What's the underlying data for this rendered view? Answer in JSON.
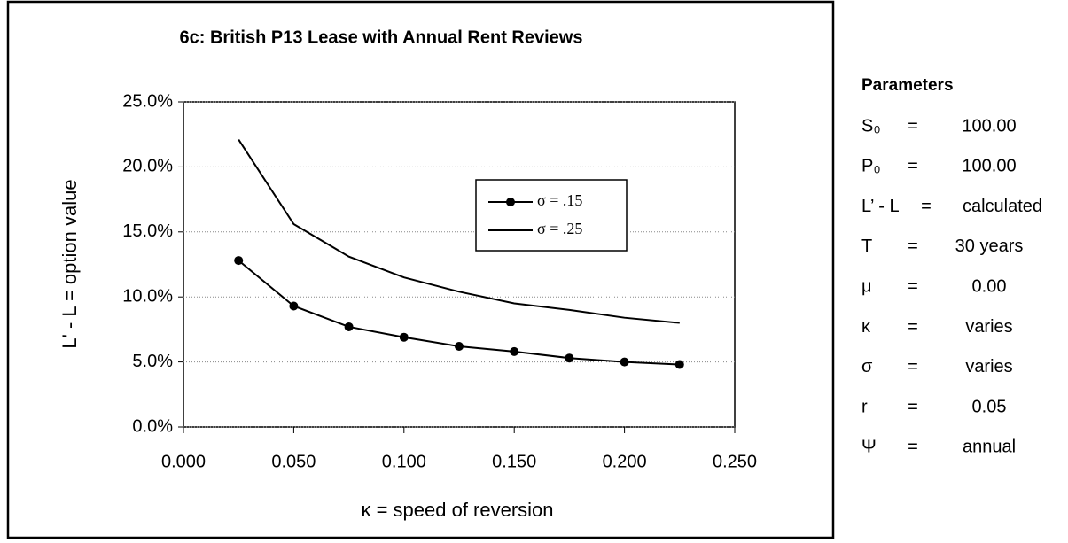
{
  "chart_data": {
    "type": "line",
    "title": "6c: British P13 Lease with Annual Rent Reviews",
    "x_label": "κ = speed of reversion",
    "y_label": "L' - L  =  option value",
    "x": [
      0.025,
      0.05,
      0.075,
      0.1,
      0.125,
      0.15,
      0.175,
      0.2,
      0.225
    ],
    "series": [
      {
        "name": "σ = .15",
        "color": "#000000",
        "markers": true,
        "values": [
          12.8,
          9.3,
          7.7,
          6.9,
          6.2,
          5.8,
          5.3,
          5.0,
          4.8
        ]
      },
      {
        "name": "σ = .25",
        "color": "#000000",
        "markers": false,
        "values": [
          22.1,
          15.6,
          13.1,
          11.5,
          10.4,
          9.5,
          9.0,
          8.4,
          8.0
        ]
      }
    ],
    "xlim": [
      0,
      0.25
    ],
    "xticks": [
      {
        "value": 0,
        "label": "0.000"
      },
      {
        "value": 0.05,
        "label": "0.050"
      },
      {
        "value": 0.1,
        "label": "0.100"
      },
      {
        "value": 0.15,
        "label": "0.150"
      },
      {
        "value": 0.2,
        "label": "0.200"
      },
      {
        "value": 0.25,
        "label": "0.250"
      }
    ],
    "ylim": [
      0,
      25
    ],
    "yticks": [
      {
        "value": 0,
        "label": "0.0%"
      },
      {
        "value": 5,
        "label": "5.0%"
      },
      {
        "value": 10,
        "label": "10.0%"
      },
      {
        "value": 15,
        "label": "15.0%"
      },
      {
        "value": 20,
        "label": "20.0%"
      },
      {
        "value": 25,
        "label": "25.0%"
      }
    ],
    "grid": true
  },
  "parameters": {
    "title": "Parameters",
    "rows": [
      [
        "S₀",
        "=",
        "100.00"
      ],
      [
        "P₀",
        "=",
        "100.00"
      ],
      [
        "L’ - L",
        "=",
        "calculated"
      ],
      [
        "T",
        "=",
        "30 years"
      ],
      [
        "μ",
        "=",
        "0.00"
      ],
      [
        "κ",
        "=",
        "varies"
      ],
      [
        "σ",
        "=",
        "varies"
      ],
      [
        "r",
        "=",
        "0.05"
      ],
      [
        "Ψ",
        "=",
        "annual"
      ]
    ]
  }
}
